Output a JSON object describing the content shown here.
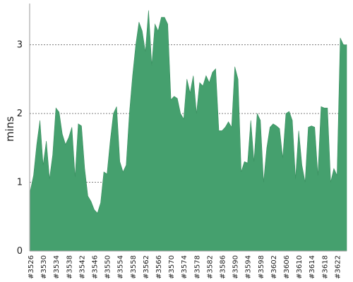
{
  "chart_data": {
    "type": "area",
    "ylabel": "mins",
    "xlabel": "",
    "ylim": [
      0,
      3.6
    ],
    "yticks": [
      0,
      1,
      2,
      3
    ],
    "grid": {
      "horizontal": true,
      "style": "dotted"
    },
    "fill_color": "#45a06e",
    "line_color": "#3a8f60",
    "axis_color": "#999999",
    "grid_color": "#555555",
    "x_tick_labels": [
      "#3526",
      "#3530",
      "#3534",
      "#3538",
      "#3542",
      "#3546",
      "#3550",
      "#3554",
      "#3558",
      "#3562",
      "#3566",
      "#3570",
      "#3574",
      "#3578",
      "#3582",
      "#3586",
      "#3590",
      "#3594",
      "#3598",
      "#3602",
      "#3606",
      "#3610",
      "#3614",
      "#3618",
      "#3622"
    ],
    "x_first_build": 3526,
    "x_last_build": 3625,
    "series": [
      {
        "values": [
          0.88,
          1.1,
          1.55,
          1.9,
          1.25,
          1.6,
          1.05,
          1.4,
          2.08,
          2.02,
          1.7,
          1.55,
          1.65,
          1.8,
          1.08,
          1.85,
          1.82,
          1.2,
          0.8,
          0.72,
          0.6,
          0.55,
          0.7,
          1.15,
          1.12,
          1.6,
          2.0,
          2.1,
          1.3,
          1.15,
          1.25,
          2.0,
          2.55,
          3.0,
          3.33,
          3.2,
          2.9,
          3.5,
          2.7,
          3.3,
          3.2,
          3.4,
          3.4,
          3.3,
          2.2,
          2.25,
          2.22,
          2.0,
          1.92,
          2.5,
          2.3,
          2.55,
          2.0,
          2.45,
          2.4,
          2.55,
          2.45,
          2.6,
          2.65,
          1.75,
          1.75,
          1.8,
          1.88,
          1.8,
          2.68,
          2.5,
          1.15,
          1.3,
          1.28,
          1.9,
          1.3,
          2.0,
          1.9,
          1.0,
          1.5,
          1.8,
          1.85,
          1.82,
          1.78,
          1.35,
          2.0,
          2.03,
          1.9,
          1.05,
          1.75,
          1.25,
          1.0,
          1.8,
          1.82,
          1.8,
          1.1,
          2.1,
          2.08,
          2.08,
          1.0,
          1.2,
          1.1,
          3.1,
          3.0,
          3.0
        ]
      }
    ]
  }
}
